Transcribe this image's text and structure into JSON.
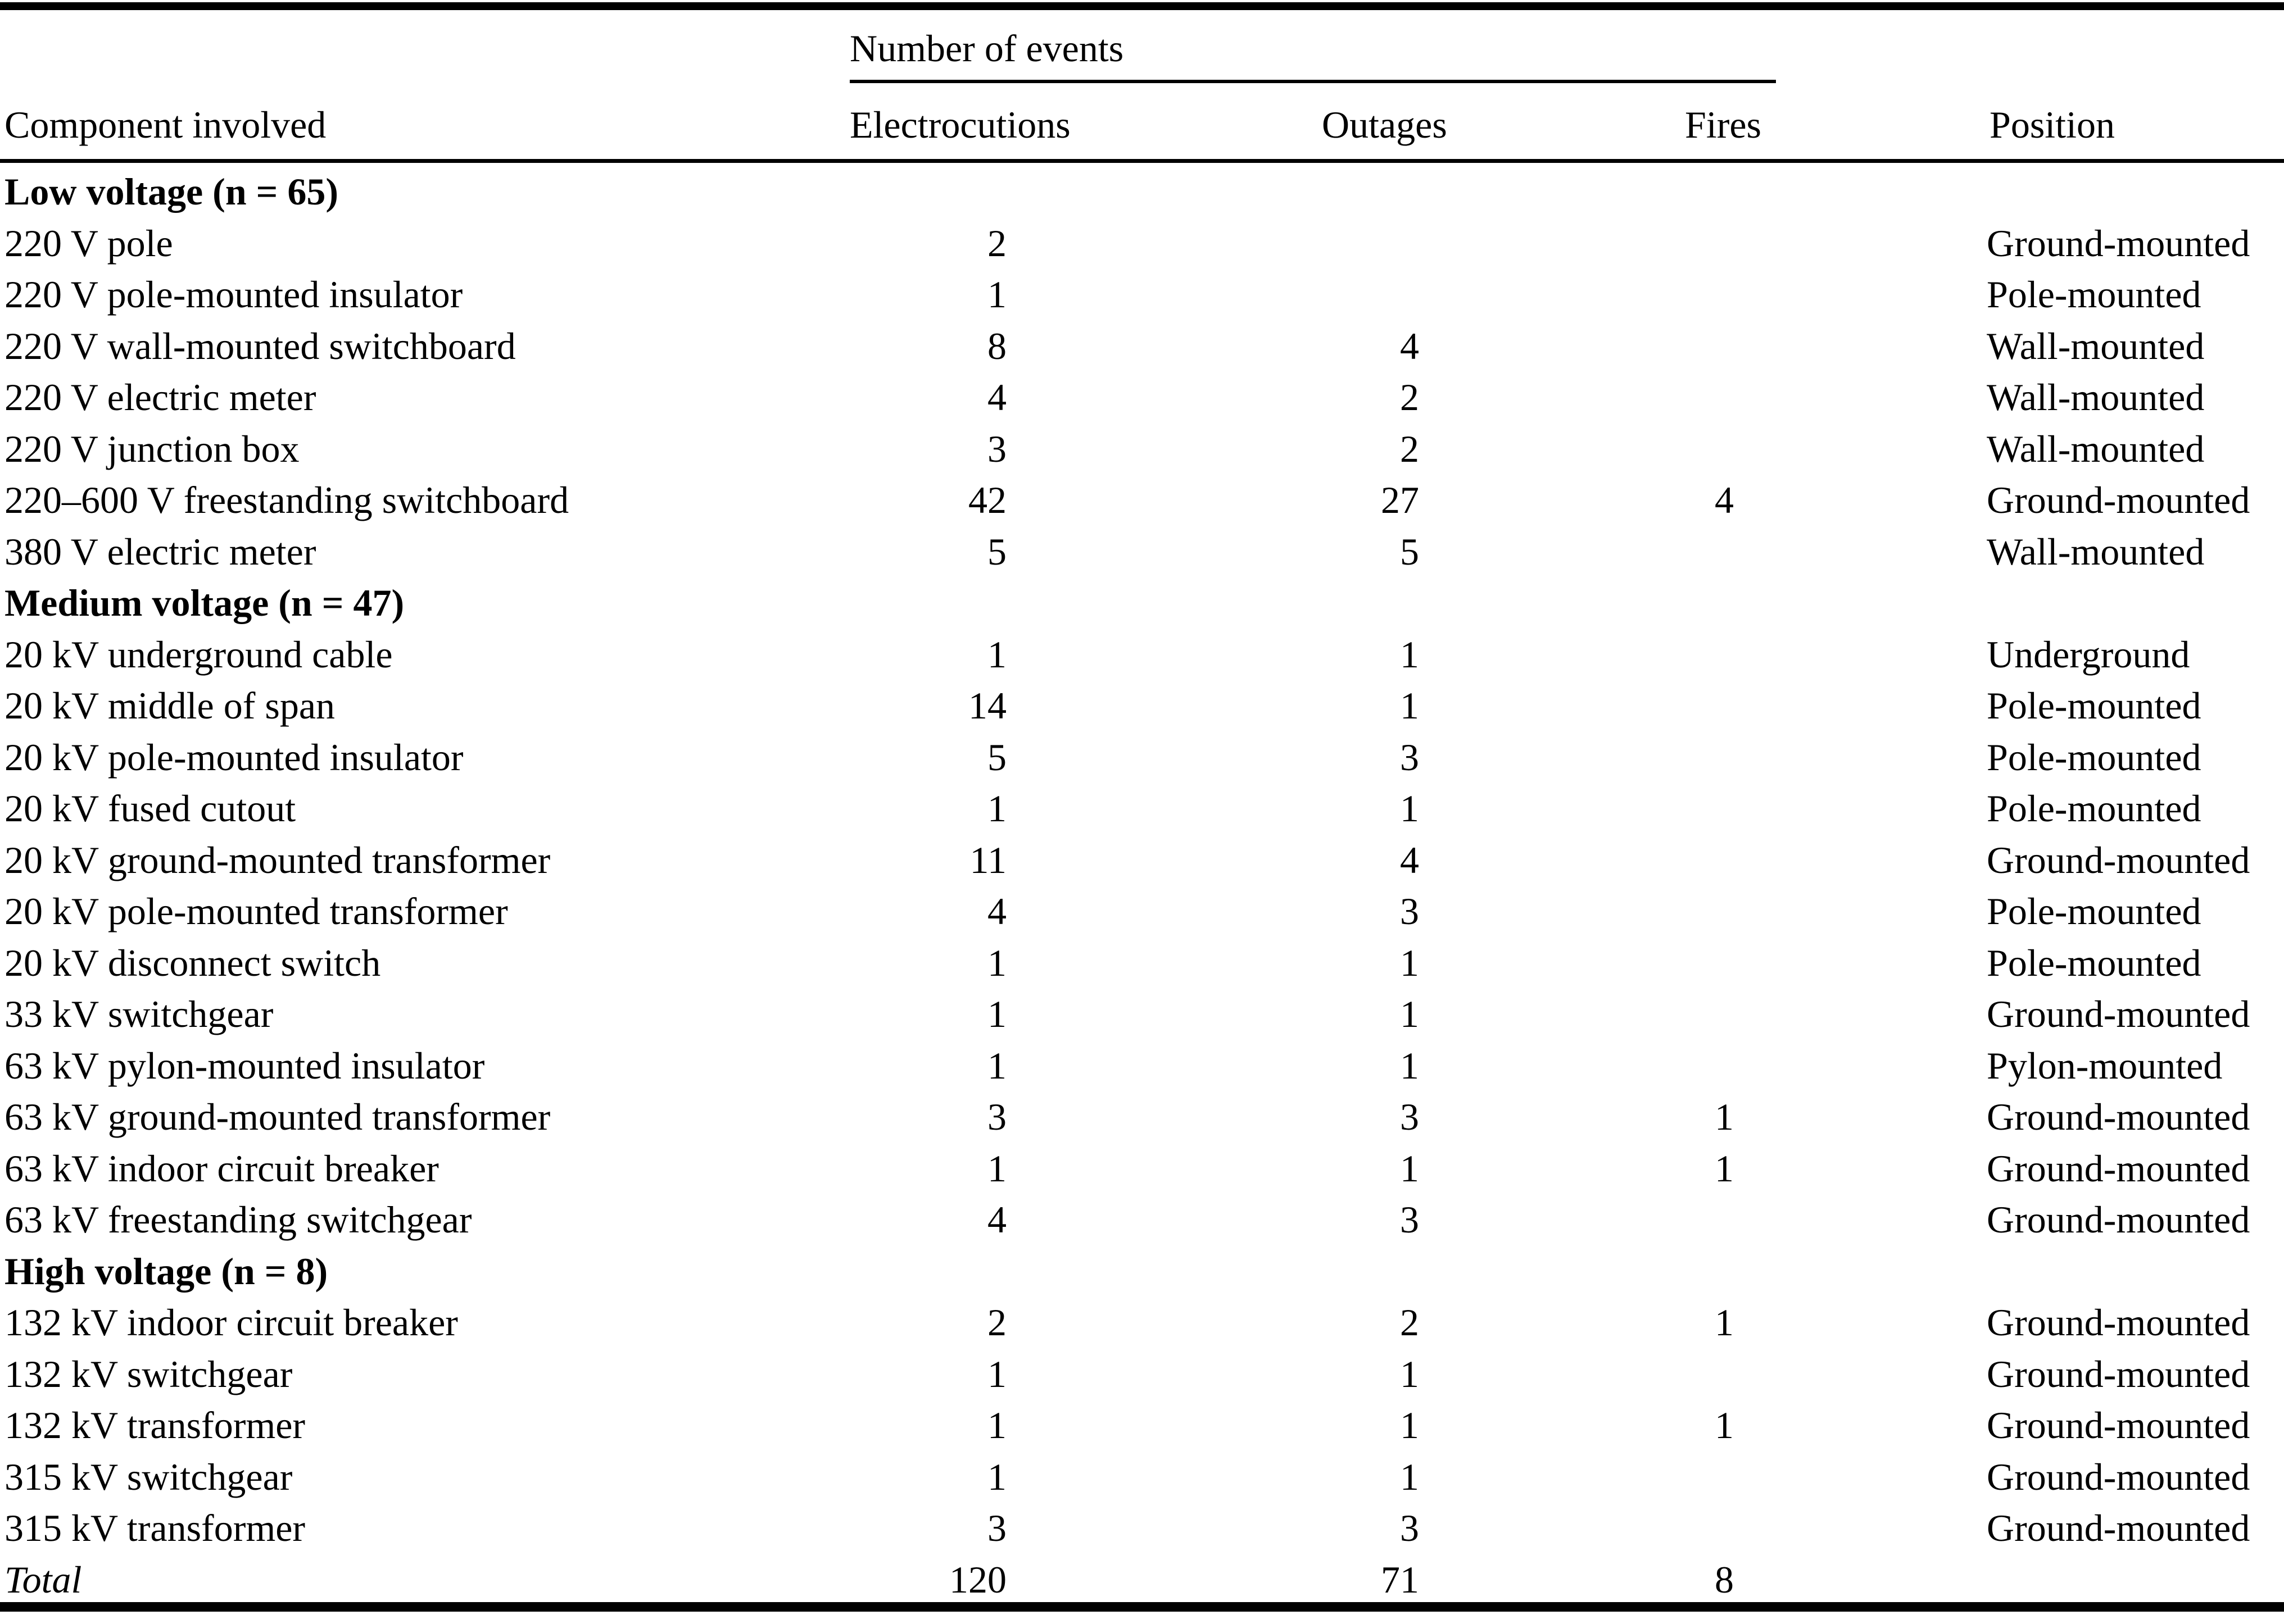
{
  "page": {
    "background_color": "#ffffff",
    "text_color": "#000000",
    "rule_color": "#000000"
  },
  "table": {
    "spanner_label": "Number of events",
    "headers": {
      "component": "Component involved",
      "electrocutions": "Electrocutions",
      "outages": "Outages",
      "fires": "Fires",
      "position": "Position"
    },
    "rows": [
      {
        "type": "section",
        "component": "Low voltage (n = 65)",
        "electrocutions": "",
        "outages": "",
        "fires": "",
        "position": ""
      },
      {
        "type": "data",
        "component": "220 V pole",
        "electrocutions": "2",
        "outages": "",
        "fires": "",
        "position": "Ground-mounted"
      },
      {
        "type": "data",
        "component": "220 V pole-mounted insulator",
        "electrocutions": "1",
        "outages": "",
        "fires": "",
        "position": "Pole-mounted"
      },
      {
        "type": "data",
        "component": "220 V wall-mounted switchboard",
        "electrocutions": "8",
        "outages": "4",
        "fires": "",
        "position": "Wall-mounted"
      },
      {
        "type": "data",
        "component": "220 V electric meter",
        "electrocutions": "4",
        "outages": "2",
        "fires": "",
        "position": "Wall-mounted"
      },
      {
        "type": "data",
        "component": "220 V junction box",
        "electrocutions": "3",
        "outages": "2",
        "fires": "",
        "position": "Wall-mounted"
      },
      {
        "type": "data",
        "component": "220–600 V freestanding switchboard",
        "electrocutions": "42",
        "outages": "27",
        "fires": "4",
        "position": "Ground-mounted"
      },
      {
        "type": "data",
        "component": "380 V electric meter",
        "electrocutions": "5",
        "outages": "5",
        "fires": "",
        "position": "Wall-mounted"
      },
      {
        "type": "section",
        "component": "Medium voltage (n = 47)",
        "electrocutions": "",
        "outages": "",
        "fires": "",
        "position": ""
      },
      {
        "type": "data",
        "component": "20 kV underground cable",
        "electrocutions": "1",
        "outages": "1",
        "fires": "",
        "position": "Underground"
      },
      {
        "type": "data",
        "component": "20 kV middle of span",
        "electrocutions": "14",
        "outages": "1",
        "fires": "",
        "position": "Pole-mounted"
      },
      {
        "type": "data",
        "component": "20 kV pole-mounted insulator",
        "electrocutions": "5",
        "outages": "3",
        "fires": "",
        "position": "Pole-mounted"
      },
      {
        "type": "data",
        "component": "20 kV fused cutout",
        "electrocutions": "1",
        "outages": "1",
        "fires": "",
        "position": "Pole-mounted"
      },
      {
        "type": "data",
        "component": "20 kV ground-mounted transformer",
        "electrocutions": "11",
        "outages": "4",
        "fires": "",
        "position": "Ground-mounted"
      },
      {
        "type": "data",
        "component": "20 kV pole-mounted transformer",
        "electrocutions": "4",
        "outages": "3",
        "fires": "",
        "position": "Pole-mounted"
      },
      {
        "type": "data",
        "component": "20 kV disconnect switch",
        "electrocutions": "1",
        "outages": "1",
        "fires": "",
        "position": "Pole-mounted"
      },
      {
        "type": "data",
        "component": "33 kV switchgear",
        "electrocutions": "1",
        "outages": "1",
        "fires": "",
        "position": "Ground-mounted"
      },
      {
        "type": "data",
        "component": "63 kV pylon-mounted insulator",
        "electrocutions": "1",
        "outages": "1",
        "fires": "",
        "position": "Pylon-mounted"
      },
      {
        "type": "data",
        "component": "63 kV ground-mounted transformer",
        "electrocutions": "3",
        "outages": "3",
        "fires": "1",
        "position": "Ground-mounted"
      },
      {
        "type": "data",
        "component": "63 kV indoor circuit breaker",
        "electrocutions": "1",
        "outages": "1",
        "fires": "1",
        "position": "Ground-mounted"
      },
      {
        "type": "data",
        "component": "63 kV freestanding switchgear",
        "electrocutions": "4",
        "outages": "3",
        "fires": "",
        "position": "Ground-mounted"
      },
      {
        "type": "section",
        "component": "High voltage (n = 8)",
        "electrocutions": "",
        "outages": "",
        "fires": "",
        "position": ""
      },
      {
        "type": "data",
        "component": "132 kV indoor circuit breaker",
        "electrocutions": "2",
        "outages": "2",
        "fires": "1",
        "position": "Ground-mounted"
      },
      {
        "type": "data",
        "component": "132 kV switchgear",
        "electrocutions": "1",
        "outages": "1",
        "fires": "",
        "position": "Ground-mounted"
      },
      {
        "type": "data",
        "component": "132 kV transformer",
        "electrocutions": "1",
        "outages": "1",
        "fires": "1",
        "position": "Ground-mounted"
      },
      {
        "type": "data",
        "component": "315 kV switchgear",
        "electrocutions": "1",
        "outages": "1",
        "fires": "",
        "position": "Ground-mounted"
      },
      {
        "type": "data",
        "component": "315 kV transformer",
        "electrocutions": "3",
        "outages": "3",
        "fires": "",
        "position": "Ground-mounted"
      },
      {
        "type": "total",
        "component": "Total",
        "electrocutions": "120",
        "outages": "71",
        "fires": "8",
        "position": ""
      }
    ]
  }
}
